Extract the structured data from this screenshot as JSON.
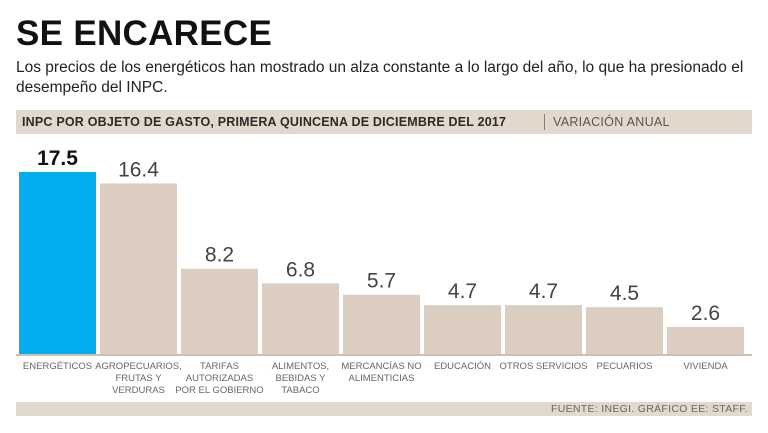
{
  "title": "SE ENCARECE",
  "subtitle": "Los precios de los energéticos han mostrado un alza constante a lo largo del año, lo que ha presionado el desempeño del INPC.",
  "header": {
    "main": "INPC POR OBJETO DE GASTO, PRIMERA QUINCENA DE DICIEMBRE DEL 2017",
    "sub": "VARIACIÓN ANUAL"
  },
  "source": "FUENTE: INEGI. GRÁFICO EE: STAFF.",
  "colors": {
    "highlight": "#00aeef",
    "bar": "#dbcdbf",
    "baseline": "#cdbfb2"
  },
  "chart_data": {
    "type": "bar",
    "title": "INPC POR OBJETO DE GASTO, PRIMERA QUINCENA DE DICIEMBRE DEL 2017",
    "subtitle": "VARIACIÓN ANUAL",
    "categories": [
      [
        "ENERGÉTICOS"
      ],
      [
        "AGROPECUARIOS,",
        "FRUTAS Y",
        "VERDURAS"
      ],
      [
        "TARIFAS",
        "AUTORIZADAS",
        "POR EL GOBIERNO"
      ],
      [
        "ALIMENTOS,",
        "BEBIDAS Y",
        "TABACO"
      ],
      [
        "MERCANCÍAS NO",
        "ALIMENTICIAS"
      ],
      [
        "EDUCACIÓN"
      ],
      [
        "OTROS SERVICIOS"
      ],
      [
        "PECUARIOS"
      ],
      [
        "VIVIENDA"
      ]
    ],
    "values": [
      17.5,
      16.4,
      8.2,
      6.8,
      5.7,
      4.7,
      4.7,
      4.5,
      2.6
    ],
    "labels": [
      "17.5",
      "16.4",
      "8.2",
      "6.8",
      "5.7",
      "4.7",
      "4.7",
      "4.5",
      "2.6"
    ],
    "highlight_index": 0,
    "ylim": [
      0,
      17.5
    ],
    "xlabel": "",
    "ylabel": ""
  }
}
